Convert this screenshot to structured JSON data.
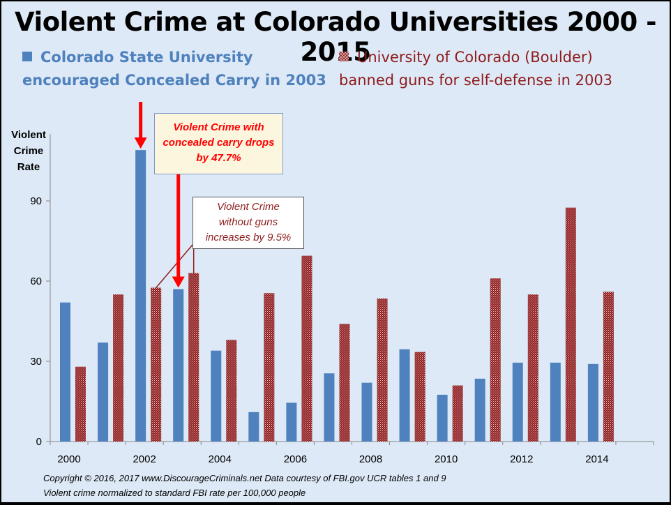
{
  "title": "Violent Crime at Colorado Universities 2000 - 2015",
  "legend": {
    "csu_line1": "Colorado State University",
    "csu_line2": "encouraged Concealed Carry in 2003",
    "cu_line1": "University of Colorado (Boulder)",
    "cu_line2": "banned guns for self-defense in 2003"
  },
  "ylabel": {
    "line1": "Violent",
    "line2": "Crime",
    "line3": "Rate"
  },
  "annotations": {
    "csu": {
      "line1": "Violent Crime with",
      "line2": "concealed carry drops",
      "line3": "by 47.7%"
    },
    "cu": {
      "line1": "Violent Crime",
      "line2": "without guns",
      "line3": "increases by 9.5%"
    }
  },
  "footer": {
    "line1": "Copyright © 2016, 2017 www.DiscourageCriminals.net Data courtesy of FBI.gov UCR tables 1 and 9",
    "line2": "Violent crime normalized to standard FBI rate per 100,000 people"
  },
  "colors": {
    "csu": "#4e81bd",
    "cu": "#8e1b1c",
    "arrow": "#ff0000",
    "background": "#dde9f6"
  },
  "chart_data": {
    "type": "bar",
    "categories": [
      "2000",
      "2001",
      "2002",
      "2003",
      "2004",
      "2005",
      "2006",
      "2007",
      "2008",
      "2009",
      "2010",
      "2011",
      "2012",
      "2013",
      "2014",
      "2015"
    ],
    "x_tick_labels": [
      "2000",
      "2002",
      "2004",
      "2006",
      "2008",
      "2010",
      "2012",
      "2014"
    ],
    "series": [
      {
        "name": "Colorado State University",
        "values": [
          52,
          37,
          109,
          57,
          34,
          11,
          14.5,
          25.5,
          22,
          34.5,
          17.5,
          23.5,
          29.5,
          29.5,
          29,
          null
        ]
      },
      {
        "name": "University of Colorado (Boulder)",
        "values": [
          28,
          55,
          57.5,
          63,
          38,
          55.5,
          69.5,
          44,
          53.5,
          33.5,
          21,
          61,
          55,
          87.5,
          56,
          null
        ]
      }
    ],
    "ylim": [
      0,
      115
    ],
    "yticks": [
      0,
      30,
      60,
      90
    ],
    "grid": false
  }
}
